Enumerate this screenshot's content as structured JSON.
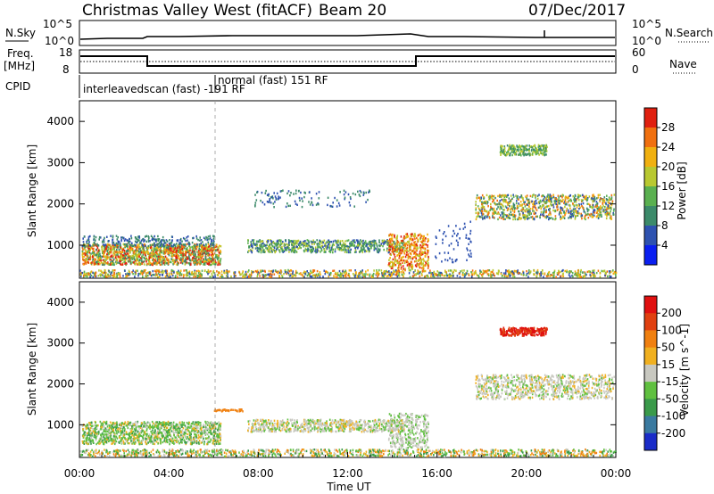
{
  "header": {
    "title": "Christmas Valley West (fitACF)",
    "beam": "Beam 20",
    "date": "07/Dec/2017"
  },
  "params": {
    "nsky_label": "N.Sky",
    "nsearch_label": "N.Search",
    "freq_label_1": "Freq.",
    "freq_label_2": "[MHz]",
    "nave_label": "Nave",
    "cpid_label": "CPID",
    "nsky_ticks": [
      "10^5",
      "10^0"
    ],
    "nsearch_ticks": [
      "10^5",
      "10^0"
    ],
    "freq_ticks": [
      "18",
      "8"
    ],
    "nave_ticks": [
      "60",
      "0"
    ],
    "cpid_modes": [
      {
        "text": "interleavedscan (fast)  -191 RF"
      },
      {
        "text": "normal (fast) 151 RF"
      }
    ]
  },
  "chart_data": [
    {
      "type": "heatmap",
      "name": "power",
      "ylabel": "Slant Range [km]",
      "xlabel": "",
      "y_ticks": [
        1000,
        2000,
        3000,
        4000
      ],
      "ylim": [
        200,
        4500
      ],
      "xlim": [
        0,
        24
      ],
      "colorbar": {
        "label": "Power [dB]",
        "ticks": [
          "4",
          "8",
          "12",
          "16",
          "20",
          "24",
          "28"
        ],
        "colors": [
          "#0a1ff0",
          "#2e52b0",
          "#3c8a6a",
          "#5ab050",
          "#b8c830",
          "#f0b010",
          "#f07010",
          "#e02010"
        ]
      }
    },
    {
      "type": "heatmap",
      "name": "velocity",
      "ylabel": "Slant Range [km]",
      "xlabel": "Time UT",
      "y_ticks": [
        1000,
        2000,
        3000,
        4000
      ],
      "x_ticks": [
        "00:00",
        "04:00",
        "08:00",
        "12:00",
        "16:00",
        "20:00",
        "00:00"
      ],
      "ylim": [
        200,
        4500
      ],
      "xlim": [
        0,
        24
      ],
      "colorbar": {
        "label": "Velocity [m s^-1]",
        "ticks": [
          "200",
          "100",
          "50",
          "15",
          "-15",
          "-50",
          "-100",
          "-200"
        ],
        "colors": [
          "#1a2cc8",
          "#3a7aa0",
          "#3a9a4a",
          "#60c040",
          "#c8c8c0",
          "#f0b020",
          "#f08010",
          "#e04010",
          "#e01010"
        ]
      }
    }
  ]
}
